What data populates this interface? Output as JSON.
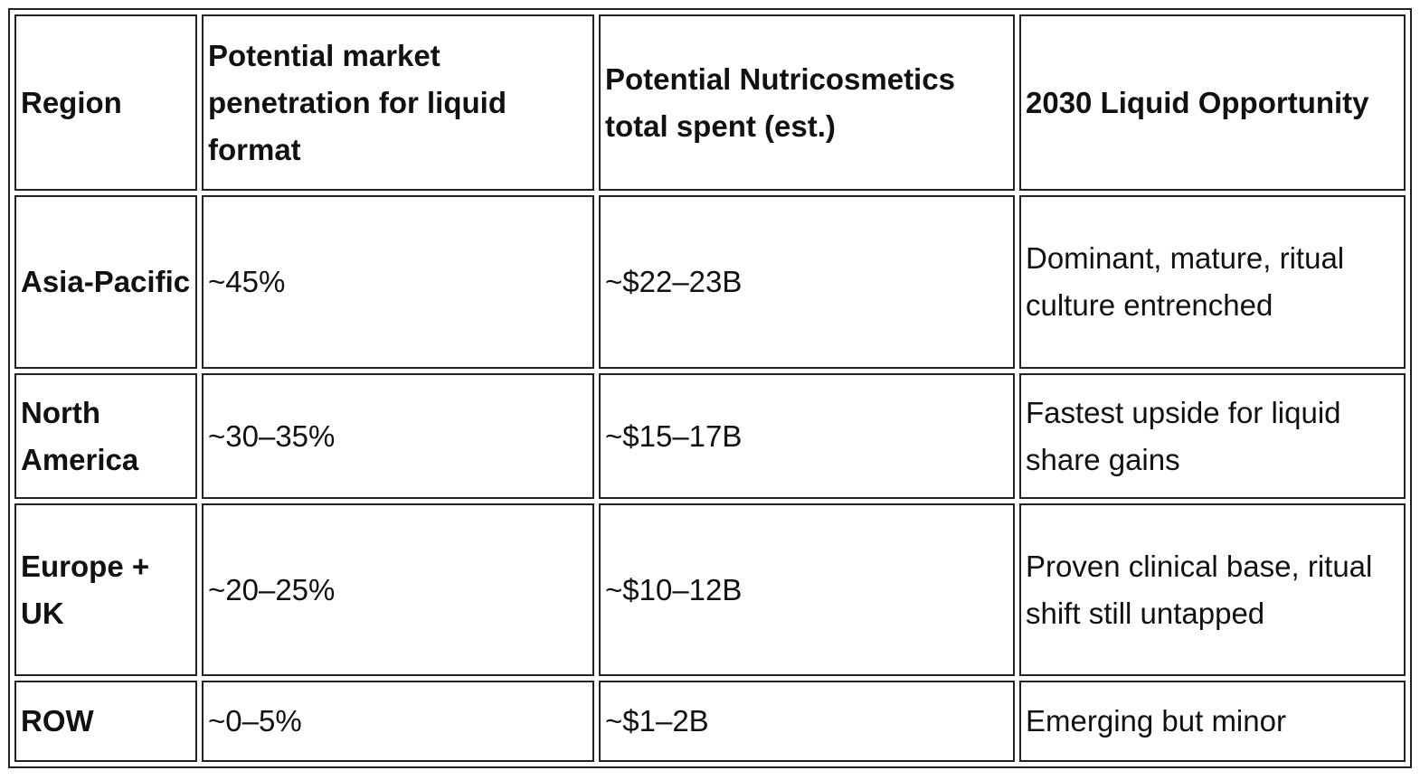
{
  "table": {
    "header": [
      "Region",
      "Potential market penetration for liquid format",
      "Potential Nutricosmetics total spent (est.)",
      "2030 Liquid Opportunity"
    ],
    "rows": [
      [
        "Asia-Pacific",
        "~45%",
        "~$22–23B",
        "Dominant, mature, ritual culture entrenched"
      ],
      [
        "North America",
        "~30–35%",
        "~$15–17B",
        "Fastest upside for liquid share gains"
      ],
      [
        "Europe + UK",
        "~20–25%",
        "~$10–12B",
        "Proven clinical base, ritual shift still untapped"
      ],
      [
        "ROW",
        "~0–5%",
        "~$1–2B",
        "Emerging but minor"
      ]
    ]
  }
}
